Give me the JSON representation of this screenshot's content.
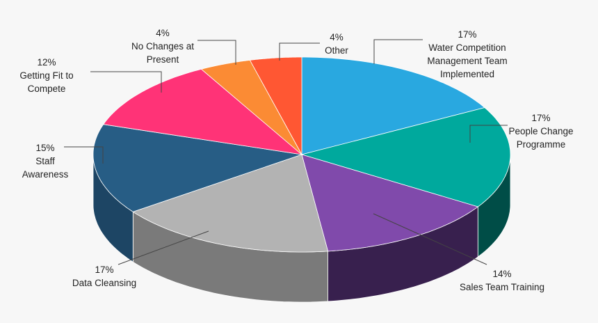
{
  "chart_data": {
    "type": "pie",
    "style": "3d",
    "legend": "none",
    "slices": [
      {
        "label": "Water Competition Management Team Implemented",
        "value": 17,
        "value_label": "17%",
        "color": "#29a8e0",
        "side_color": "#1c7aa4"
      },
      {
        "label": "People Change Programme",
        "value": 17,
        "value_label": "17%",
        "color": "#00a99d",
        "side_color": "#004d47"
      },
      {
        "label": "Sales Team Training",
        "value": 14,
        "value_label": "14%",
        "color": "#804aab",
        "side_color": "#38204e"
      },
      {
        "label": "Data Cleansing",
        "value": 17,
        "value_label": "17%",
        "color": "#b3b3b3",
        "side_color": "#7a7a7a"
      },
      {
        "label": "Staff Awareness",
        "value": 15,
        "value_label": "15%",
        "color": "#275d85",
        "side_color": "#1d4564"
      },
      {
        "label": "Getting Fit to Compete",
        "value": 12,
        "value_label": "12%",
        "color": "#ff3377",
        "side_color": "#b32455"
      },
      {
        "label": "No Changes at Present",
        "value": 4,
        "value_label": "4%",
        "color": "#fb8b34",
        "side_color": "#b56220"
      },
      {
        "label": "Other",
        "value": 4,
        "value_label": "4%",
        "color": "#ff5733",
        "side_color": "#b33d24"
      }
    ]
  }
}
